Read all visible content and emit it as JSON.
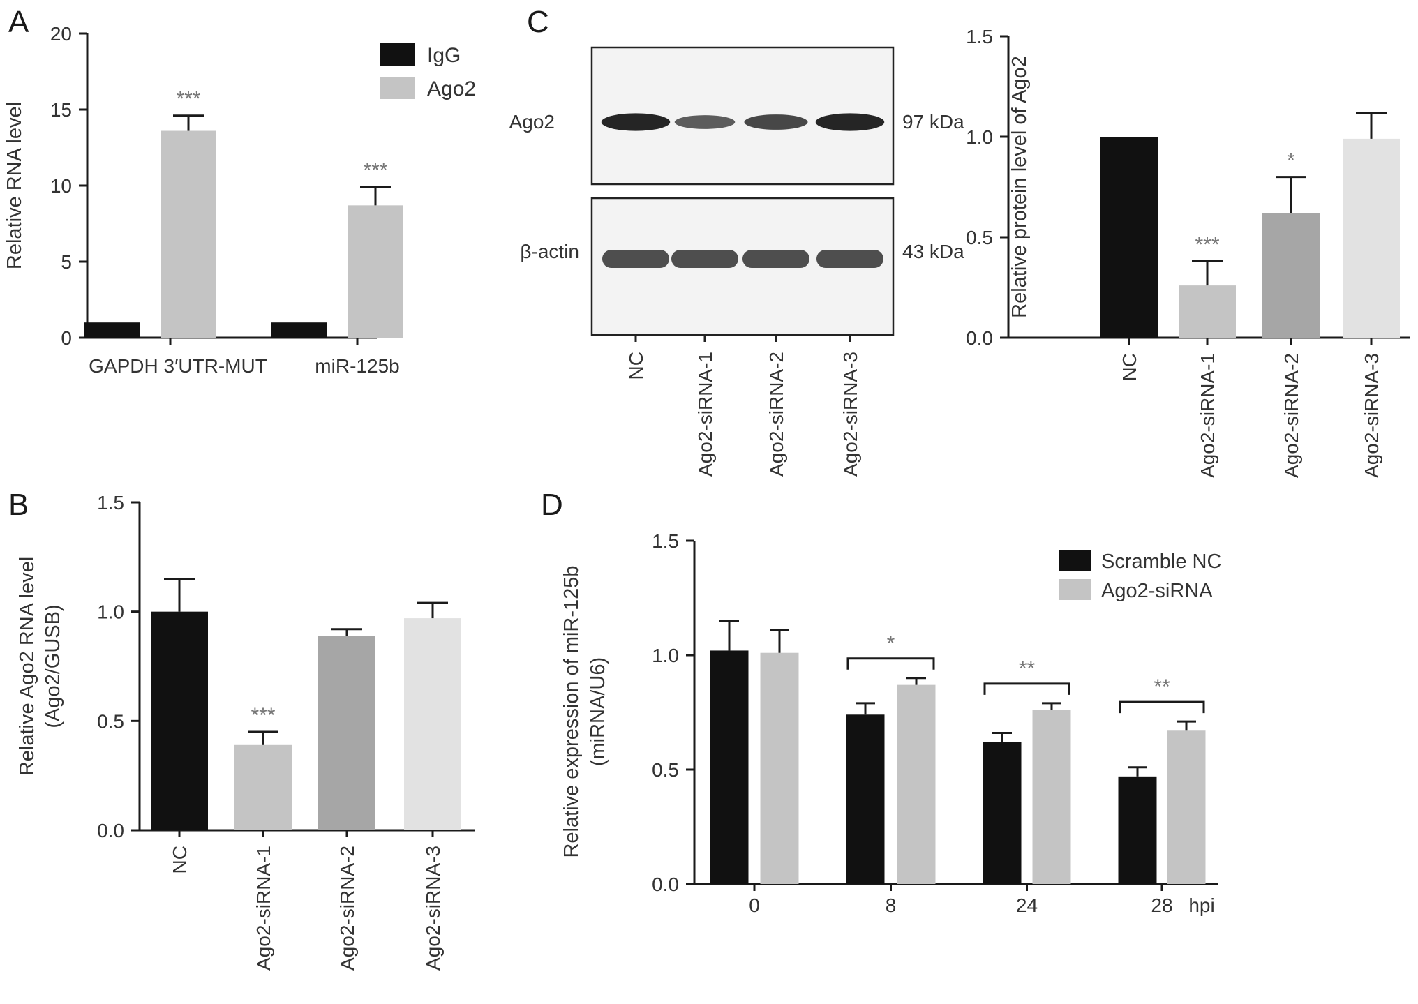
{
  "panels": {
    "A": "A",
    "B": "B",
    "C": "C",
    "D": "D"
  },
  "colors": {
    "black": "#111111",
    "light_gray": "#c4c4c4",
    "mid_gray": "#a6a6a6",
    "lighter_gray": "#e2e2e2",
    "axis": "#1a1a1a",
    "sig": "#777777"
  },
  "blot": {
    "labels": [
      "Ago2",
      "β-actin"
    ],
    "kda": [
      "97 kDa",
      "43 kDa"
    ],
    "lanes": [
      "NC",
      "Ago2-siRNA-1",
      "Ago2-siRNA-2",
      "Ago2-siRNA-3"
    ],
    "ago2_band_intensity": [
      0.95,
      0.55,
      0.7,
      0.95
    ],
    "actin_band_intensity": [
      0.85,
      0.85,
      0.85,
      0.85
    ]
  },
  "chart_data": [
    {
      "id": "A",
      "type": "bar",
      "ylabel": "Relative RNA level",
      "ylim": [
        0,
        20
      ],
      "yticks": [
        "0",
        "5",
        "10",
        "15",
        "20"
      ],
      "yticks_values": [
        0,
        5,
        10,
        15,
        20
      ],
      "categories": [
        "GAPDH 3′UTR-MUT",
        "miR-125b"
      ],
      "series": [
        {
          "name": "IgG",
          "values": [
            1.0,
            1.0
          ],
          "errors": [
            0,
            0
          ],
          "color": "#111111"
        },
        {
          "name": "Ago2",
          "values": [
            13.6,
            8.7
          ],
          "errors": [
            1.0,
            1.2
          ],
          "color": "#c4c4c4"
        }
      ],
      "significance": [
        {
          "category": 0,
          "series": 1,
          "label": "***"
        },
        {
          "category": 1,
          "series": 1,
          "label": "***"
        }
      ],
      "legend": "top-right"
    },
    {
      "id": "B",
      "type": "bar",
      "ylabel": "Relative Ago2 RNA level",
      "ylabel2": "(Ago2/GUSB)",
      "ylim": [
        0,
        1.5
      ],
      "yticks": [
        "0.0",
        "0.5",
        "1.0",
        "1.5"
      ],
      "yticks_values": [
        0,
        0.5,
        1.0,
        1.5
      ],
      "categories": [
        "NC",
        "Ago2-siRNA-1",
        "Ago2-siRNA-2",
        "Ago2-siRNA-3"
      ],
      "values": [
        1.0,
        0.39,
        0.89,
        0.97
      ],
      "errors": [
        0.15,
        0.06,
        0.03,
        0.07
      ],
      "colors": [
        "#111111",
        "#c4c4c4",
        "#a6a6a6",
        "#e2e2e2"
      ],
      "significance": [
        {
          "index": 1,
          "label": "***"
        }
      ]
    },
    {
      "id": "C",
      "type": "bar",
      "ylabel": "Relative protein level of Ago2",
      "ylim": [
        0,
        1.5
      ],
      "yticks": [
        "0.0",
        "0.5",
        "1.0",
        "1.5"
      ],
      "yticks_values": [
        0,
        0.5,
        1.0,
        1.5
      ],
      "categories": [
        "NC",
        "Ago2-siRNA-1",
        "Ago2-siRNA-2",
        "Ago2-siRNA-3"
      ],
      "values": [
        1.0,
        0.26,
        0.62,
        0.99
      ],
      "errors": [
        0,
        0.12,
        0.18,
        0.13
      ],
      "colors": [
        "#111111",
        "#c4c4c4",
        "#a6a6a6",
        "#e2e2e2"
      ],
      "significance": [
        {
          "index": 1,
          "label": "***"
        },
        {
          "index": 2,
          "label": "*"
        }
      ]
    },
    {
      "id": "D",
      "type": "bar",
      "ylabel": "Relative expression of miR-125b",
      "ylabel2": "(miRNA/U6)",
      "ylim": [
        0,
        1.5
      ],
      "yticks": [
        "0.0",
        "0.5",
        "1.0",
        "1.5"
      ],
      "yticks_values": [
        0,
        0.5,
        1.0,
        1.5
      ],
      "categories": [
        "0",
        "8",
        "24",
        "28"
      ],
      "x_unit": "hpi",
      "series": [
        {
          "name": "Scramble NC",
          "values": [
            1.02,
            0.74,
            0.62,
            0.47
          ],
          "errors": [
            0.13,
            0.05,
            0.04,
            0.04
          ],
          "color": "#111111"
        },
        {
          "name": "Ago2-siRNA",
          "values": [
            1.01,
            0.87,
            0.76,
            0.67
          ],
          "errors": [
            0.1,
            0.03,
            0.03,
            0.04
          ],
          "color": "#c4c4c4"
        }
      ],
      "significance": [
        {
          "category": 1,
          "label": "*"
        },
        {
          "category": 2,
          "label": "**"
        },
        {
          "category": 3,
          "label": "**"
        }
      ],
      "legend": "top-right"
    }
  ]
}
